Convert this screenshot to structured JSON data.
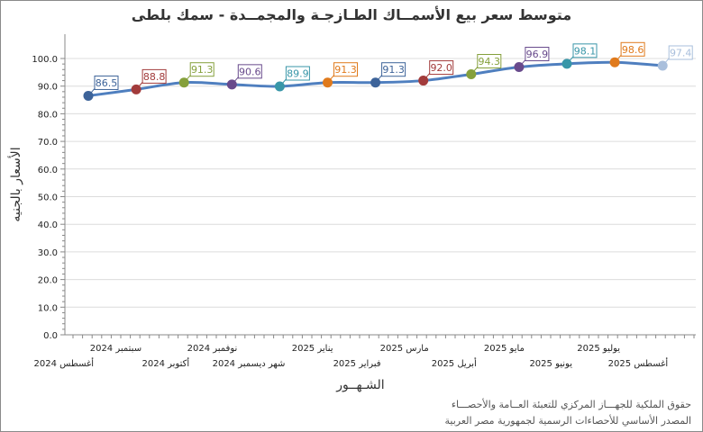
{
  "chart_data": {
    "type": "line",
    "title": "متوسط سعر بيع الأسمــاك الطـازجـة والمجمــدة - سمك بلطى",
    "xlabel": "الشـهــور",
    "ylabel": "الأسعار بالجنيه",
    "ylim": [
      0,
      100
    ],
    "yticks": [
      "0.0",
      "10.0",
      "20.0",
      "30.0",
      "40.0",
      "50.0",
      "60.0",
      "70.0",
      "80.0",
      "90.0",
      "100.0"
    ],
    "grid": true,
    "categories": [
      "أغسطس 2024",
      "سبتمبر 2024",
      "أكتوبر 2024",
      "نوفمبر 2024",
      "شهر ديسمبر 2024",
      "يناير 2025",
      "فبراير 2025",
      "مارس 2025",
      "أبريل 2025",
      "مايو 2025",
      "يونيو 2025",
      "يوليو 2025",
      "أغسطس 2025"
    ],
    "values": [
      86.5,
      88.8,
      91.3,
      90.6,
      89.9,
      91.3,
      91.3,
      92.0,
      94.3,
      96.9,
      98.1,
      98.6,
      97.4
    ],
    "data_labels": [
      "86.5",
      "88.8",
      "91.3",
      "90.6",
      "89.9",
      "91.3",
      "91.3",
      "92.0",
      "94.3",
      "96.9",
      "98.1",
      "98.6",
      "97.4"
    ],
    "line_color": "#4f7fbf",
    "point_colors": [
      "#3d6399",
      "#a23b3b",
      "#85a03c",
      "#684a8c",
      "#3896a8",
      "#e07a1c",
      "#3d6399",
      "#a23b3b",
      "#85a03c",
      "#684a8c",
      "#3896a8",
      "#e07a1c",
      "#a9bfdc"
    ]
  },
  "footer": {
    "line1": "حقوق الملكية للجهـــاز المركزي للتعبئة العــامة والأحصـــاء",
    "line2": "المصدر الأساسي للأحصاءات الرسمية لجمهورية مصر العربية"
  }
}
